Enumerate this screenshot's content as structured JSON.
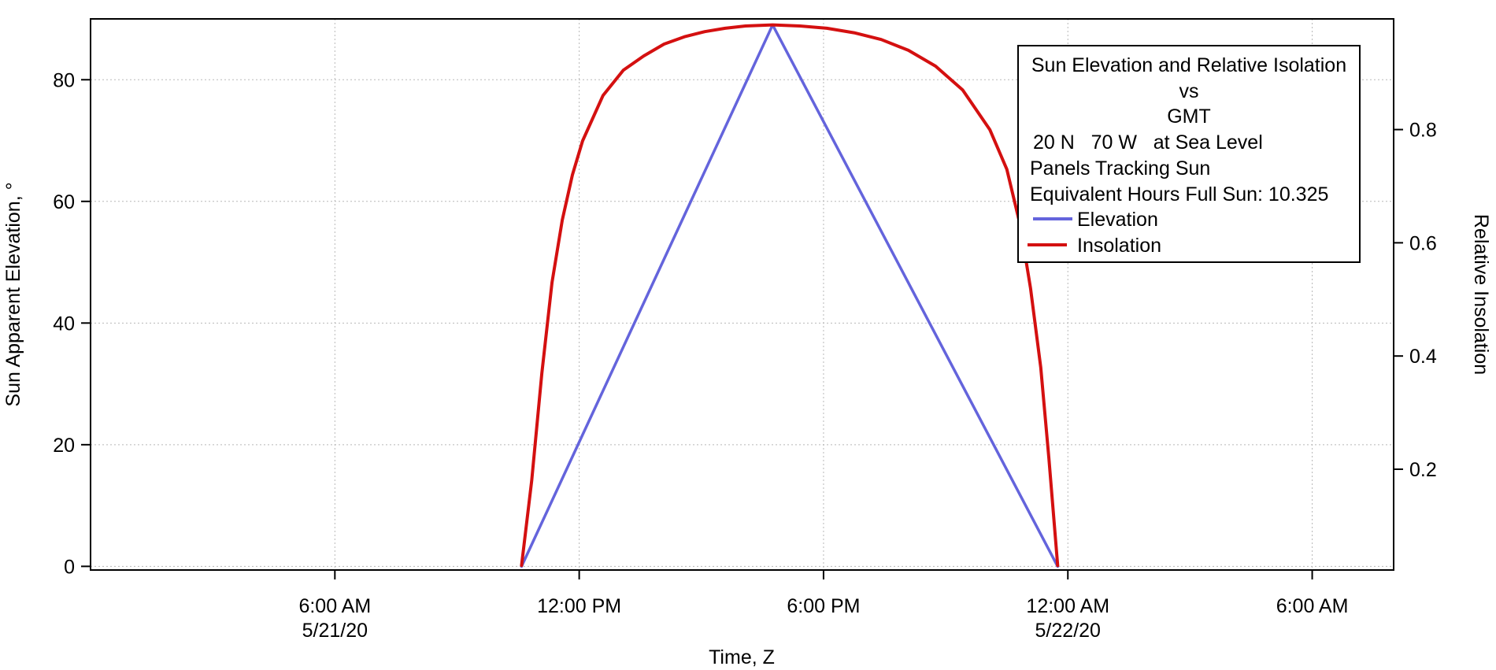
{
  "chart_data": {
    "type": "line",
    "xlabel": "Time, Z",
    "ylabel": "Sun Apparent Elevation, °",
    "y2label": "Relative Insolation",
    "x_range": [
      "2020-05-21 00:00",
      "2020-05-22 08:00"
    ],
    "ylim": [
      -0.6,
      90
    ],
    "y2lim": [
      0.022,
      0.9955
    ],
    "x_ticks": [
      {
        "time": "2020-05-21 06:00",
        "label": "6:00 AM",
        "sublabel": "5/21/20"
      },
      {
        "time": "2020-05-21 12:00",
        "label": "12:00 PM",
        "sublabel": ""
      },
      {
        "time": "2020-05-21 18:00",
        "label": "6:00 PM",
        "sublabel": ""
      },
      {
        "time": "2020-05-22 00:00",
        "label": "12:00 AM",
        "sublabel": "5/22/20"
      },
      {
        "time": "2020-05-22 06:00",
        "label": "6:00 AM",
        "sublabel": ""
      }
    ],
    "y_ticks": [
      0,
      20,
      40,
      60,
      80
    ],
    "y_tick_labels": [
      "0",
      "20",
      "40",
      "60",
      "80"
    ],
    "y2_ticks": [
      0.2,
      0.4,
      0.6,
      0.8
    ],
    "y2_tick_labels": [
      "0.2",
      "0.4",
      "0.6",
      "0.8"
    ],
    "grid": true,
    "legend": {
      "placement": "top-right",
      "lines": [
        "Sun Elevation and Relative Isolation",
        "vs",
        "GMT",
        " 20 N   70 W   at Sea Level",
        "Panels Tracking Sun",
        "Equivalent Hours Full Sun: 10.325"
      ]
    },
    "series": [
      {
        "name": "Elevation",
        "axis": "left",
        "color": "#6464dc",
        "points": [
          {
            "t": "2020-05-21 10:35",
            "y": 0
          },
          {
            "t": "2020-05-21 16:45",
            "y": 89
          },
          {
            "t": "2020-05-21 23:45",
            "y": 0
          }
        ]
      },
      {
        "name": "Insolation",
        "axis": "right",
        "color": "#d41010",
        "points": [
          {
            "t": "2020-05-21 10:35",
            "y": 0.03
          },
          {
            "t": "2020-05-21 10:50",
            "y": 0.18
          },
          {
            "t": "2020-05-21 11:05",
            "y": 0.37
          },
          {
            "t": "2020-05-21 11:20",
            "y": 0.53
          },
          {
            "t": "2020-05-21 11:35",
            "y": 0.64
          },
          {
            "t": "2020-05-21 11:50",
            "y": 0.72
          },
          {
            "t": "2020-05-21 12:05",
            "y": 0.78
          },
          {
            "t": "2020-05-21 12:35",
            "y": 0.86
          },
          {
            "t": "2020-05-21 13:05",
            "y": 0.905
          },
          {
            "t": "2020-05-21 13:35",
            "y": 0.93
          },
          {
            "t": "2020-05-21 14:05",
            "y": 0.951
          },
          {
            "t": "2020-05-21 14:35",
            "y": 0.964
          },
          {
            "t": "2020-05-21 15:05",
            "y": 0.973
          },
          {
            "t": "2020-05-21 15:35",
            "y": 0.979
          },
          {
            "t": "2020-05-21 16:05",
            "y": 0.983
          },
          {
            "t": "2020-05-21 16:45",
            "y": 0.985
          },
          {
            "t": "2020-05-21 17:25",
            "y": 0.983
          },
          {
            "t": "2020-05-21 18:05",
            "y": 0.979
          },
          {
            "t": "2020-05-21 18:45",
            "y": 0.971
          },
          {
            "t": "2020-05-21 19:25",
            "y": 0.959
          },
          {
            "t": "2020-05-21 20:05",
            "y": 0.94
          },
          {
            "t": "2020-05-21 20:45",
            "y": 0.912
          },
          {
            "t": "2020-05-21 21:25",
            "y": 0.87
          },
          {
            "t": "2020-05-21 22:05",
            "y": 0.8
          },
          {
            "t": "2020-05-21 22:30",
            "y": 0.73
          },
          {
            "t": "2020-05-21 22:50",
            "y": 0.63
          },
          {
            "t": "2020-05-21 23:05",
            "y": 0.52
          },
          {
            "t": "2020-05-21 23:20",
            "y": 0.38
          },
          {
            "t": "2020-05-21 23:32",
            "y": 0.22
          },
          {
            "t": "2020-05-21 23:45",
            "y": 0.03
          }
        ]
      }
    ]
  }
}
